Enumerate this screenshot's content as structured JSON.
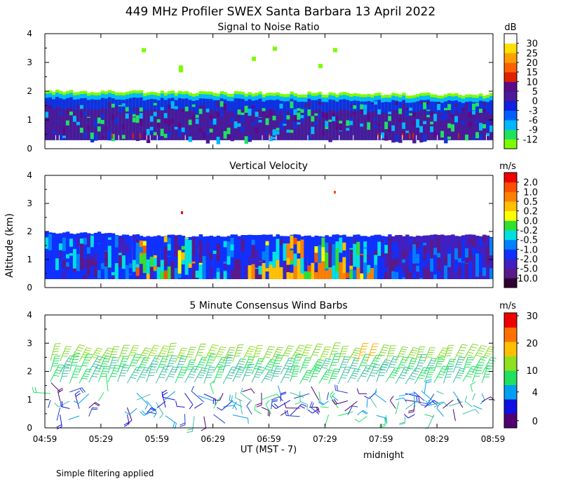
{
  "title": "449 MHz Profiler SWEX Santa Barbara 13 April 2022",
  "ylabel": "Altitude (km)",
  "xlabel": "UT  (MST - 7)",
  "midnight_label": "midnight",
  "footnote": "Simple filtering applied",
  "chart_data": [
    {
      "type": "heatmap",
      "title": "Signal to Noise Ratio",
      "units": "dB",
      "xlim": [
        "04:59",
        "08:59"
      ],
      "ylim": [
        0,
        4
      ],
      "y_ticks": [
        "0",
        "1",
        "2",
        "3",
        "4"
      ],
      "colorbar": {
        "labels": [
          "-12",
          "-9",
          "-6",
          "-3",
          "0",
          "5",
          "10",
          "15",
          "20",
          "25",
          "30"
        ],
        "colors": [
          "#7cfc00",
          "#20e060",
          "#00b8ff",
          "#0060ff",
          "#1020e0",
          "#4a1a99",
          "#5a0a8a",
          "#e02000",
          "#ff6000",
          "#ffa000",
          "#ffe000",
          "#ffffff"
        ]
      },
      "layers": [
        {
          "name": "low",
          "top_km": 1.4,
          "color": "#4a1a99"
        },
        {
          "name": "mid",
          "top_km": 1.75,
          "color": "#1030e0"
        },
        {
          "name": "upper",
          "top_km": 1.9,
          "color": "#00b8ff"
        },
        {
          "name": "edge",
          "top_km": 2.0,
          "color": "#7cfc00"
        }
      ],
      "data_bottom_km": 0.3
    },
    {
      "type": "heatmap",
      "title": "Vertical Velocity",
      "units": "m/s",
      "xlim": [
        "04:59",
        "08:59"
      ],
      "ylim": [
        0,
        4
      ],
      "y_ticks": [
        "0",
        "1",
        "2",
        "3",
        "4"
      ],
      "colorbar": {
        "labels": [
          "-10.0",
          "-5.0",
          "-2.0",
          "-1.0",
          "-0.5",
          "-0.2",
          "0.0",
          "0.2",
          "0.5",
          "1.0",
          "2.0"
        ],
        "colors": [
          "#300030",
          "#5a1a8a",
          "#4020c0",
          "#1030ff",
          "#0080ff",
          "#00e0e0",
          "#30e030",
          "#ffff00",
          "#ffc000",
          "#ff8000",
          "#ff5000",
          "#ee0000"
        ]
      },
      "data_top_km": 1.85,
      "data_bottom_km": 0.3
    },
    {
      "type": "scatter",
      "subtype": "wind-barbs",
      "title": "5 Minute Consensus Wind Barbs",
      "units": "m/s",
      "xlim": [
        "04:59",
        "08:59"
      ],
      "ylim": [
        0,
        4
      ],
      "y_ticks": [
        "0",
        "1",
        "2",
        "3",
        "4"
      ],
      "x_ticks": [
        "04:59",
        "05:29",
        "05:59",
        "06:29",
        "06:59",
        "07:29",
        "07:59",
        "08:29",
        "08:59"
      ],
      "colorbar": {
        "labels": [
          "0",
          "4",
          "10",
          "20",
          "30"
        ],
        "colors": [
          "#500070",
          "#1010e0",
          "#00a0f0",
          "#20e060",
          "#90e020",
          "#ffc000",
          "#ff7000",
          "#ee0000"
        ]
      },
      "barb_levels_km": [
        2.35,
        1.95,
        1.6,
        1.25,
        0.95,
        0.7,
        0.45
      ],
      "barb_columns": 46
    }
  ]
}
